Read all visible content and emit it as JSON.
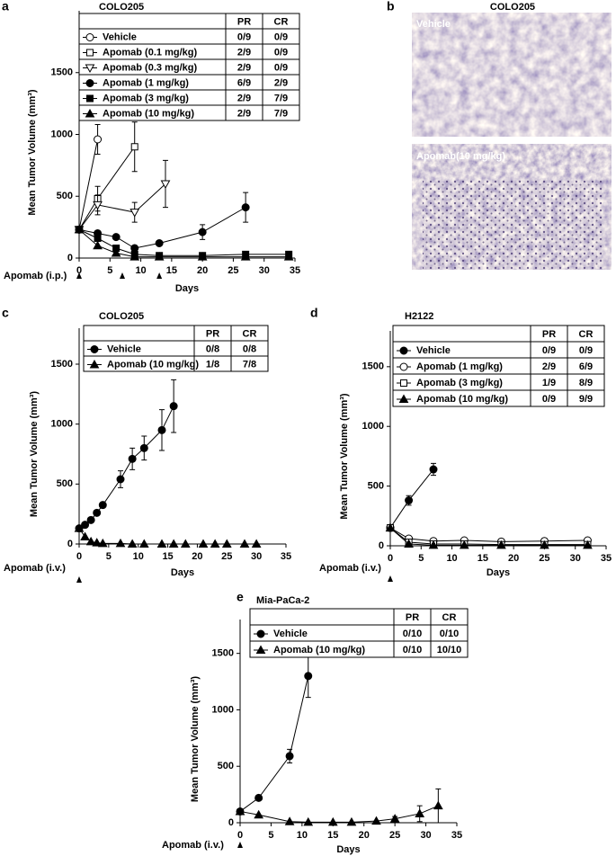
{
  "chart_data": [
    {
      "type": "line",
      "panel": "a",
      "title": "COLO205",
      "x_label": "Days",
      "y_label": "Mean Tumor Volume (mm³)",
      "xlim": [
        0,
        35
      ],
      "xticks": [
        0,
        5,
        10,
        15,
        20,
        25,
        30,
        35
      ],
      "ylim": [
        0,
        2000
      ],
      "yticks": [
        0,
        500,
        1000,
        1500
      ],
      "dosing_label": "Apomab (i.p.)",
      "dosing_days": [
        0,
        7,
        13
      ],
      "table_columns": [
        "PR",
        "CR"
      ],
      "series": [
        {
          "name": "Vehicle",
          "marker": "open-circle",
          "color": "#000000",
          "pr": "0/9",
          "cr": "0/9",
          "x": [
            0,
            3
          ],
          "values": [
            230,
            960
          ],
          "errors": [
            null,
            120
          ]
        },
        {
          "name": "Apomab (0.1 mg/kg)",
          "marker": "open-square",
          "color": "#000000",
          "pr": "2/9",
          "cr": "0/9",
          "x": [
            0,
            3,
            9
          ],
          "values": [
            230,
            480,
            900
          ],
          "errors": [
            null,
            100,
            200
          ]
        },
        {
          "name": "Apomab (0.3 mg/kg)",
          "marker": "open-triangle-down",
          "color": "#000000",
          "pr": "2/9",
          "cr": "0/9",
          "x": [
            0,
            3,
            9,
            14
          ],
          "values": [
            230,
            430,
            370,
            600
          ],
          "errors": [
            null,
            80,
            80,
            190
          ]
        },
        {
          "name": "Apomab (1 mg/kg)",
          "marker": "filled-circle",
          "color": "#000000",
          "pr": "6/9",
          "cr": "2/9",
          "x": [
            0,
            3,
            6,
            9,
            13,
            20,
            27
          ],
          "values": [
            230,
            200,
            170,
            80,
            120,
            210,
            410
          ],
          "errors": [
            null,
            20,
            20,
            20,
            20,
            60,
            120
          ]
        },
        {
          "name": "Apomab (3 mg/kg)",
          "marker": "filled-square",
          "color": "#000000",
          "pr": "2/9",
          "cr": "7/9",
          "x": [
            0,
            3,
            6,
            9,
            13,
            20,
            27,
            34
          ],
          "values": [
            230,
            160,
            80,
            30,
            20,
            20,
            30,
            30
          ],
          "errors": [
            null,
            null,
            null,
            null,
            null,
            null,
            null,
            null
          ]
        },
        {
          "name": "Apomab (10 mg/kg)",
          "marker": "filled-triangle",
          "color": "#000000",
          "pr": "2/9",
          "cr": "7/9",
          "x": [
            0,
            3,
            6,
            9,
            13,
            20,
            27,
            34
          ],
          "values": [
            230,
            100,
            40,
            10,
            10,
            10,
            10,
            10
          ],
          "errors": [
            null,
            null,
            null,
            null,
            null,
            null,
            null,
            null
          ]
        }
      ]
    },
    {
      "type": "line",
      "panel": "c",
      "title": "COLO205",
      "x_label": "Days",
      "y_label": "Mean Tumor Volume (mm³)",
      "xlim": [
        0,
        35
      ],
      "xticks": [
        0,
        5,
        10,
        15,
        20,
        25,
        30,
        35
      ],
      "ylim": [
        0,
        1800
      ],
      "yticks": [
        0,
        500,
        1000,
        1500
      ],
      "dosing_label": "Apomab (i.v.)",
      "dosing_days": [
        0
      ],
      "table_columns": [
        "PR",
        "CR"
      ],
      "series": [
        {
          "name": "Vehicle",
          "marker": "filled-circle",
          "color": "#000000",
          "pr": "0/8",
          "cr": "0/8",
          "x": [
            0,
            1,
            2,
            3,
            4,
            7,
            9,
            11,
            14,
            16
          ],
          "values": [
            130,
            160,
            200,
            260,
            325,
            540,
            710,
            800,
            950,
            1150
          ],
          "errors": [
            null,
            null,
            null,
            null,
            null,
            70,
            90,
            100,
            170,
            220
          ]
        },
        {
          "name": "Apomab (10 mg/kg)",
          "marker": "filled-triangle",
          "color": "#000000",
          "pr": "1/8",
          "cr": "7/8",
          "x": [
            0,
            1,
            2,
            3,
            4,
            7,
            9,
            11,
            14,
            16,
            18,
            21,
            23,
            25,
            28,
            30
          ],
          "values": [
            130,
            60,
            20,
            10,
            5,
            5,
            0,
            0,
            0,
            0,
            0,
            0,
            0,
            0,
            0,
            0
          ],
          "errors": [
            null,
            null,
            null,
            null,
            null,
            null,
            null,
            null,
            null,
            null,
            null,
            null,
            null,
            null,
            null,
            null
          ]
        }
      ]
    },
    {
      "type": "line",
      "panel": "d",
      "title": "H2122",
      "x_label": "Days",
      "y_label": "Mean Tumor Volume (mm³)",
      "xlim": [
        0,
        35
      ],
      "xticks": [
        0,
        5,
        10,
        15,
        20,
        25,
        30,
        35
      ],
      "ylim": [
        0,
        1800
      ],
      "yticks": [
        0,
        500,
        1000,
        1500
      ],
      "dosing_label": "Apomab (i.v.)",
      "dosing_days": [
        0
      ],
      "table_columns": [
        "PR",
        "CR"
      ],
      "series": [
        {
          "name": "Vehicle",
          "marker": "filled-circle",
          "color": "#000000",
          "pr": "0/9",
          "cr": "0/9",
          "x": [
            0,
            3,
            7
          ],
          "values": [
            150,
            380,
            640
          ],
          "errors": [
            null,
            40,
            50
          ]
        },
        {
          "name": "Apomab (1 mg/kg)",
          "marker": "open-circle",
          "color": "#000000",
          "pr": "2/9",
          "cr": "6/9",
          "x": [
            0,
            3,
            7,
            12,
            18,
            25,
            32
          ],
          "values": [
            150,
            60,
            40,
            45,
            35,
            40,
            45
          ],
          "errors": [
            null,
            null,
            null,
            null,
            null,
            null,
            null
          ]
        },
        {
          "name": "Apomab (3 mg/kg)",
          "marker": "open-square",
          "color": "#000000",
          "pr": "1/9",
          "cr": "8/9",
          "x": [
            0,
            3,
            7,
            12,
            18,
            25,
            32
          ],
          "values": [
            150,
            30,
            15,
            15,
            10,
            10,
            10
          ],
          "errors": [
            null,
            null,
            null,
            null,
            null,
            null,
            null
          ]
        },
        {
          "name": "Apomab (10 mg/kg)",
          "marker": "filled-triangle",
          "color": "#000000",
          "pr": "0/9",
          "cr": "9/9",
          "x": [
            0,
            3,
            7,
            12,
            18,
            25,
            32
          ],
          "values": [
            150,
            15,
            5,
            5,
            5,
            5,
            5
          ],
          "errors": [
            null,
            null,
            null,
            null,
            null,
            null,
            null
          ]
        }
      ]
    },
    {
      "type": "line",
      "panel": "e",
      "title": "Mia-PaCa-2",
      "x_label": "Days",
      "y_label": "Mean Tumor Volume (mm³)",
      "xlim": [
        0,
        35
      ],
      "xticks": [
        0,
        5,
        10,
        15,
        20,
        25,
        30,
        35
      ],
      "ylim": [
        0,
        1800
      ],
      "yticks": [
        0,
        500,
        1000,
        1500
      ],
      "dosing_label": "Apomab (i.v.)",
      "dosing_days": [
        0
      ],
      "table_columns": [
        "PR",
        "CR"
      ],
      "series": [
        {
          "name": "Vehicle",
          "marker": "filled-circle",
          "color": "#000000",
          "pr": "0/10",
          "cr": "0/10",
          "x": [
            0,
            3,
            8,
            11
          ],
          "values": [
            100,
            220,
            590,
            1300
          ],
          "errors": [
            null,
            null,
            60,
            190
          ]
        },
        {
          "name": "Apomab (10 mg/kg)",
          "marker": "filled-triangle",
          "color": "#000000",
          "pr": "0/10",
          "cr": "10/10",
          "x": [
            0,
            3,
            8,
            11,
            15,
            18,
            22,
            25,
            29,
            32
          ],
          "values": [
            100,
            70,
            10,
            5,
            5,
            5,
            15,
            35,
            80,
            150
          ],
          "errors": [
            null,
            null,
            null,
            null,
            null,
            null,
            null,
            20,
            70,
            150
          ]
        }
      ]
    }
  ],
  "figure_b": {
    "panel": "b",
    "title": "COLO205",
    "images": [
      {
        "label": "Vehicle"
      },
      {
        "label": "Apomab(10 mg/kg)"
      }
    ]
  }
}
